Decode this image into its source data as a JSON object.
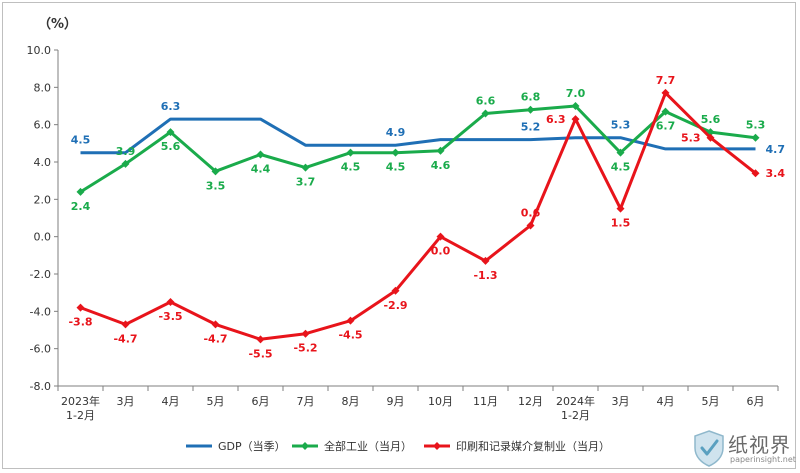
{
  "chart_data": {
    "type": "line",
    "unit_label": "（%）",
    "ylim": [
      -8.0,
      10.0
    ],
    "yticks": [
      "10.0",
      "8.0",
      "6.0",
      "4.0",
      "2.0",
      "0.0",
      "-2.0",
      "-4.0",
      "-6.0",
      "-8.0"
    ],
    "categories": [
      "2023年|1-2月",
      "3月",
      "4月",
      "5月",
      "6月",
      "7月",
      "8月",
      "9月",
      "10月",
      "11月",
      "12月",
      "2024年|1-2月",
      "3月",
      "4月",
      "5月",
      "6月"
    ],
    "series": [
      {
        "name": "GDP（当季）",
        "color": "#1f6fb5",
        "marker": "none",
        "values": [
          4.5,
          4.5,
          6.3,
          6.3,
          6.3,
          4.9,
          4.9,
          4.9,
          5.2,
          5.2,
          5.2,
          5.3,
          5.3,
          4.7,
          4.7,
          4.7
        ],
        "labels": [
          "4.5",
          "",
          "6.3",
          "",
          "",
          "",
          "",
          "4.9",
          "",
          "",
          "5.2",
          "",
          "5.3",
          "",
          "",
          "4.7"
        ]
      },
      {
        "name": "全部工业（当月）",
        "color": "#1aab4b",
        "marker": "diamond",
        "values": [
          2.4,
          3.9,
          5.6,
          3.5,
          4.4,
          3.7,
          4.5,
          4.5,
          4.6,
          6.6,
          6.8,
          7.0,
          4.5,
          6.7,
          5.6,
          5.3
        ],
        "labels": [
          "2.4",
          "3.9",
          "5.6",
          "3.5",
          "4.4",
          "3.7",
          "4.5",
          "4.5",
          "4.6",
          "6.6",
          "6.8",
          "7.0",
          "4.5",
          "6.7",
          "5.6",
          "5.3"
        ]
      },
      {
        "name": "印刷和记录媒介复制业（当月）",
        "color": "#e8141b",
        "marker": "diamond",
        "values": [
          -3.8,
          -4.7,
          -3.5,
          -4.7,
          -5.5,
          -5.2,
          -4.5,
          -2.9,
          0.0,
          -1.3,
          0.6,
          6.3,
          1.5,
          7.7,
          5.3,
          3.4
        ],
        "labels": [
          "-3.8",
          "-4.7",
          "-3.5",
          "-4.7",
          "-5.5",
          "-5.2",
          "-4.5",
          "-2.9",
          "0.0",
          "-1.3",
          "0.6",
          "6.3",
          "1.5",
          "7.7",
          "5.3",
          "3.4"
        ]
      }
    ],
    "legend_position": "bottom",
    "grid": false
  },
  "watermark": {
    "text": "纸视界",
    "subtext": "paperinsight.net",
    "icon": "shield-check-icon"
  }
}
